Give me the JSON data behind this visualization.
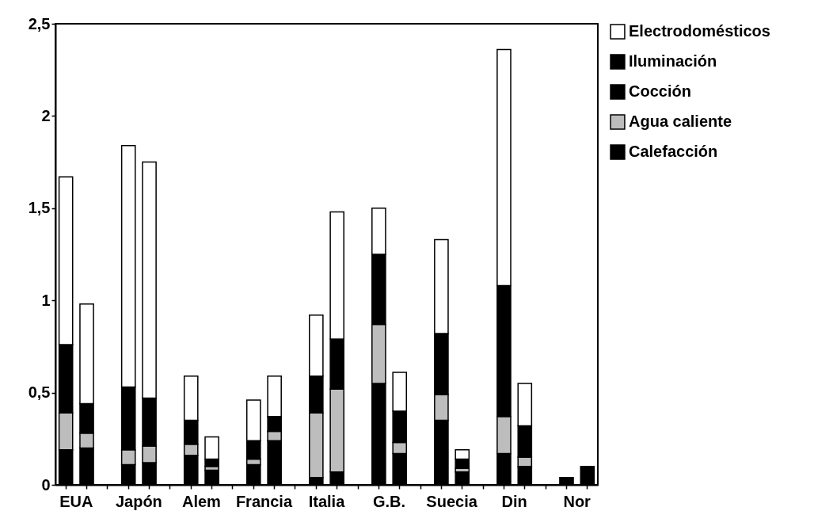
{
  "chart_data": {
    "type": "bar",
    "stacked": true,
    "legend": "right",
    "categories": [
      "EUA",
      null,
      null,
      "Japón",
      null,
      null,
      "Alem",
      null,
      null,
      "Francia",
      null,
      null,
      "Italia",
      null,
      null,
      "G.B.",
      null,
      null,
      "Suecia",
      null,
      null,
      "Din",
      null,
      null,
      "Nor",
      null
    ],
    "series": [
      {
        "name": "Calefacción",
        "color": "#000000",
        "values": [
          0.19,
          0.2,
          null,
          0.11,
          0.12,
          null,
          0.16,
          0.08,
          null,
          0.11,
          0.24,
          null,
          0.04,
          0.07,
          null,
          0.55,
          0.17,
          null,
          0.35,
          0.07,
          null,
          0.17,
          0.1,
          null,
          0.04,
          0.1
        ]
      },
      {
        "name": "Agua caliente",
        "color": "#bdbdbd",
        "values": [
          0.2,
          0.08,
          null,
          0.08,
          0.09,
          null,
          0.06,
          0.02,
          null,
          0.03,
          0.05,
          null,
          0.35,
          0.45,
          null,
          0.32,
          0.06,
          null,
          0.14,
          0.02,
          null,
          0.2,
          0.05,
          null,
          null,
          null
        ]
      },
      {
        "name": "Cocción",
        "color": "#000000",
        "values": [
          0.37,
          0.16,
          null,
          0.34,
          0.26,
          null,
          0.13,
          0.04,
          null,
          0.1,
          0.08,
          null,
          0.2,
          0.27,
          null,
          0.38,
          0.17,
          null,
          0.33,
          0.05,
          null,
          0.71,
          0.17,
          null,
          null,
          null
        ]
      },
      {
        "name": "Iluminación",
        "color": "#000000",
        "values": [
          null,
          null,
          null,
          null,
          null,
          null,
          null,
          null,
          null,
          null,
          null,
          null,
          null,
          null,
          null,
          null,
          null,
          null,
          null,
          null,
          null,
          null,
          null,
          null,
          null,
          null
        ]
      },
      {
        "name": "Electrodomésticos",
        "color": "#ffffff",
        "values": [
          0.91,
          0.54,
          null,
          1.31,
          1.28,
          null,
          0.24,
          0.12,
          null,
          0.22,
          0.22,
          null,
          0.33,
          0.69,
          null,
          0.25,
          0.21,
          null,
          0.51,
          0.05,
          null,
          1.28,
          0.23,
          null,
          null,
          null
        ]
      }
    ],
    "ylim": [
      0,
      2.5
    ],
    "yticks": [
      0,
      {
        "value": 0.5,
        "label": "0,5"
      },
      1,
      {
        "value": 1.5,
        "label": "1,5"
      },
      2,
      {
        "value": 2.5,
        "label": "2,5"
      }
    ]
  }
}
